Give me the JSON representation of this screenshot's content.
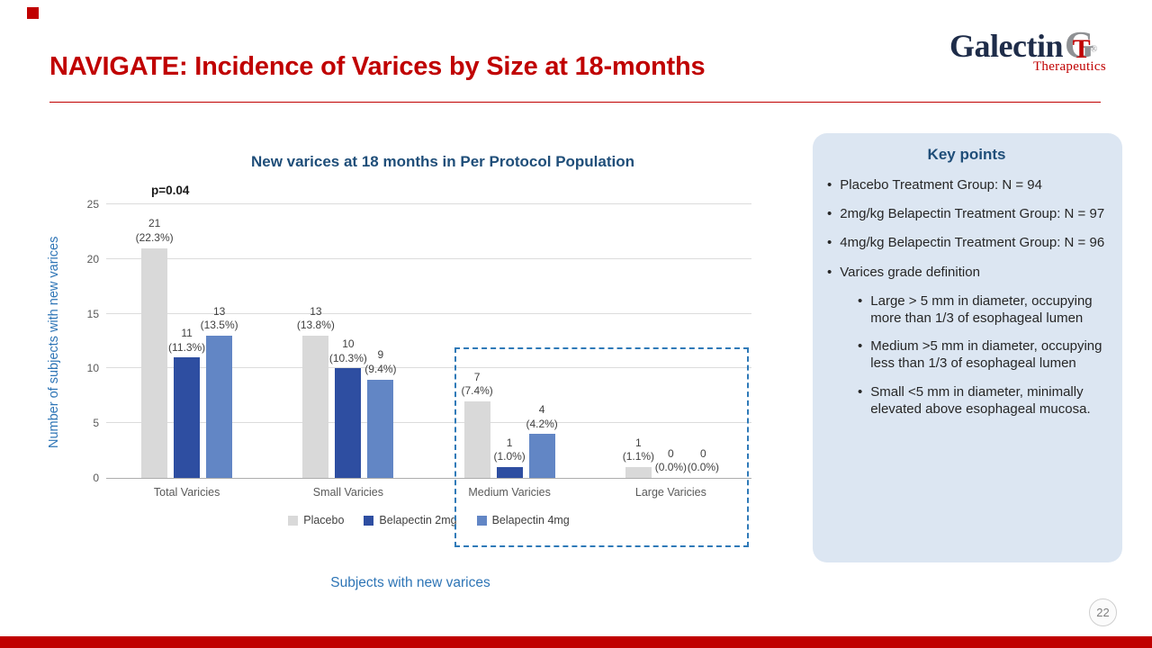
{
  "slide": {
    "title": "NAVIGATE: Incidence of Varices by Size at 18-months",
    "page_number": "22"
  },
  "logo": {
    "name": "Galectin",
    "mono_g": "G",
    "mono_t": "T",
    "registered": "®",
    "sub": "Therapeutics"
  },
  "chart_data": {
    "type": "bar",
    "title": "New varices at 18 months in Per Protocol Population",
    "annotation": "p=0.04",
    "categories": [
      "Total Varicies",
      "Small Varicies",
      "Medium Varicies",
      "Large Varicies"
    ],
    "series": [
      {
        "name": "Placebo",
        "color": "#D9D9D9",
        "values": [
          21,
          13,
          7,
          1
        ],
        "pct_labels": [
          "(22.3%)",
          "(13.8%)",
          "(7.4%)",
          "(1.1%)"
        ]
      },
      {
        "name": "Belapectin 2mg",
        "color": "#2E4EA1",
        "values": [
          11,
          10,
          1,
          0
        ],
        "pct_labels": [
          "(11.3%)",
          "(10.3%)",
          "(1.0%)",
          "(0.0%)"
        ]
      },
      {
        "name": "Belapectin 4mg",
        "color": "#6286C5",
        "values": [
          13,
          9,
          4,
          0
        ],
        "pct_labels": [
          "(13.5%)",
          "(9.4%)",
          "(4.2%)",
          "(0.0%)"
        ]
      }
    ],
    "ylabel": "Number of subjects with new varices",
    "xlabel_caption": "Subjects with new varices",
    "ylim": [
      0,
      25
    ],
    "yticks": [
      0,
      5,
      10,
      15,
      20,
      25
    ],
    "grid": true,
    "legend_position": "bottom",
    "highlight_box_categories": [
      "Medium Varicies",
      "Large Varicies"
    ]
  },
  "key_points": {
    "title": "Key points",
    "items": [
      {
        "level": 1,
        "text": "Placebo Treatment Group: N = 94"
      },
      {
        "level": 1,
        "text": "2mg/kg Belapectin Treatment Group: N = 97"
      },
      {
        "level": 1,
        "text": "4mg/kg Belapectin Treatment Group: N = 96"
      },
      {
        "level": 1,
        "text": "Varices grade definition"
      },
      {
        "level": 2,
        "text": "Large > 5 mm in diameter, occupying more than 1/3 of esophageal lumen"
      },
      {
        "level": 2,
        "text": "Medium >5 mm in diameter, occupying less than 1/3 of esophageal lumen"
      },
      {
        "level": 2,
        "text": "Small <5 mm in diameter, minimally elevated above esophageal mucosa."
      }
    ]
  }
}
